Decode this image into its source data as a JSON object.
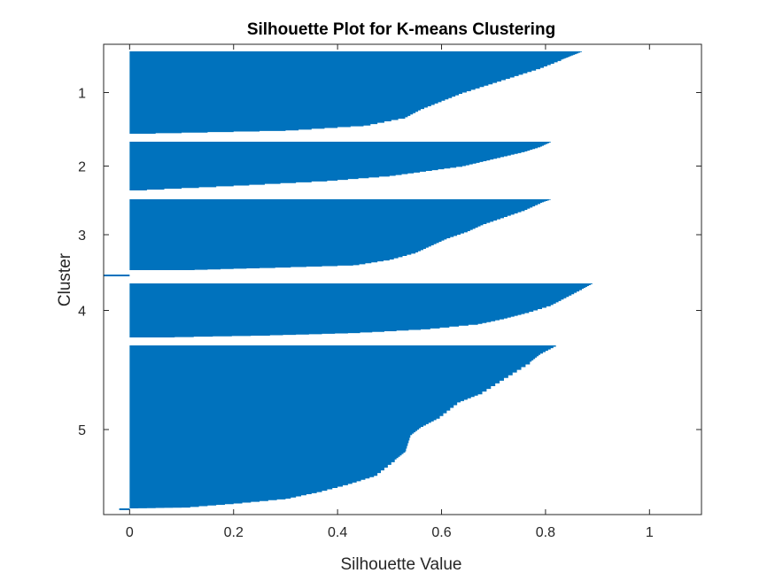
{
  "chart_data": {
    "type": "bar",
    "orientation": "horizontal",
    "title": "Silhouette Plot for K-means Clustering",
    "xlabel": "Silhouette Value",
    "ylabel": "Cluster",
    "xlim": [
      -0.05,
      1.1
    ],
    "xticks": [
      0,
      0.2,
      0.4,
      0.6,
      0.8,
      1
    ],
    "xtick_labels": [
      "0",
      "0.2",
      "0.4",
      "0.6",
      "0.8",
      "1"
    ],
    "grid": false,
    "bar_color": "#0072BD",
    "clusters": [
      {
        "label": "1",
        "max": 0.87,
        "min": 0.0,
        "neg_min": null,
        "profile": [
          [
            0,
            0.87
          ],
          [
            0.05,
            0.85
          ],
          [
            0.1,
            0.83
          ],
          [
            0.2,
            0.79
          ],
          [
            0.3,
            0.74
          ],
          [
            0.4,
            0.69
          ],
          [
            0.5,
            0.64
          ],
          [
            0.6,
            0.6
          ],
          [
            0.7,
            0.56
          ],
          [
            0.8,
            0.53
          ],
          [
            0.9,
            0.45
          ],
          [
            0.96,
            0.3
          ],
          [
            1,
            0.0
          ]
        ]
      },
      {
        "label": "2",
        "max": 0.8,
        "min": 0.0,
        "neg_min": null,
        "profile": [
          [
            0,
            0.81
          ],
          [
            0.1,
            0.79
          ],
          [
            0.2,
            0.76
          ],
          [
            0.3,
            0.72
          ],
          [
            0.4,
            0.68
          ],
          [
            0.5,
            0.64
          ],
          [
            0.6,
            0.57
          ],
          [
            0.7,
            0.5
          ],
          [
            0.8,
            0.38
          ],
          [
            0.9,
            0.2
          ],
          [
            1,
            0.0
          ]
        ]
      },
      {
        "label": "3",
        "max": 0.8,
        "min": 0.0,
        "neg_min": null,
        "profile": [
          [
            0,
            0.81
          ],
          [
            0.05,
            0.79
          ],
          [
            0.15,
            0.76
          ],
          [
            0.25,
            0.72
          ],
          [
            0.35,
            0.68
          ],
          [
            0.45,
            0.65
          ],
          [
            0.55,
            0.61
          ],
          [
            0.65,
            0.58
          ],
          [
            0.75,
            0.55
          ],
          [
            0.85,
            0.5
          ],
          [
            0.93,
            0.43
          ],
          [
            0.97,
            0.25
          ],
          [
            1,
            0.1
          ]
        ]
      },
      {
        "label": "4",
        "max": 0.88,
        "min": 0.0,
        "neg_min": -0.05,
        "profile": [
          [
            0,
            0.89
          ],
          [
            0.1,
            0.87
          ],
          [
            0.25,
            0.84
          ],
          [
            0.4,
            0.81
          ],
          [
            0.55,
            0.76
          ],
          [
            0.65,
            0.72
          ],
          [
            0.75,
            0.67
          ],
          [
            0.85,
            0.56
          ],
          [
            0.92,
            0.42
          ],
          [
            0.96,
            0.27
          ],
          [
            1,
            0.05
          ]
        ]
      },
      {
        "label": "5",
        "max": 0.82,
        "min": 0.0,
        "neg_min": -0.02,
        "profile": [
          [
            0,
            0.82
          ],
          [
            0.05,
            0.79
          ],
          [
            0.1,
            0.77
          ],
          [
            0.2,
            0.72
          ],
          [
            0.3,
            0.67
          ],
          [
            0.35,
            0.63
          ],
          [
            0.45,
            0.59
          ],
          [
            0.5,
            0.56
          ],
          [
            0.55,
            0.54
          ],
          [
            0.65,
            0.53
          ],
          [
            0.7,
            0.51
          ],
          [
            0.8,
            0.47
          ],
          [
            0.85,
            0.42
          ],
          [
            0.9,
            0.36
          ],
          [
            0.94,
            0.3
          ],
          [
            0.97,
            0.2
          ],
          [
            0.995,
            0.1
          ],
          [
            1,
            0.0
          ]
        ]
      }
    ]
  }
}
